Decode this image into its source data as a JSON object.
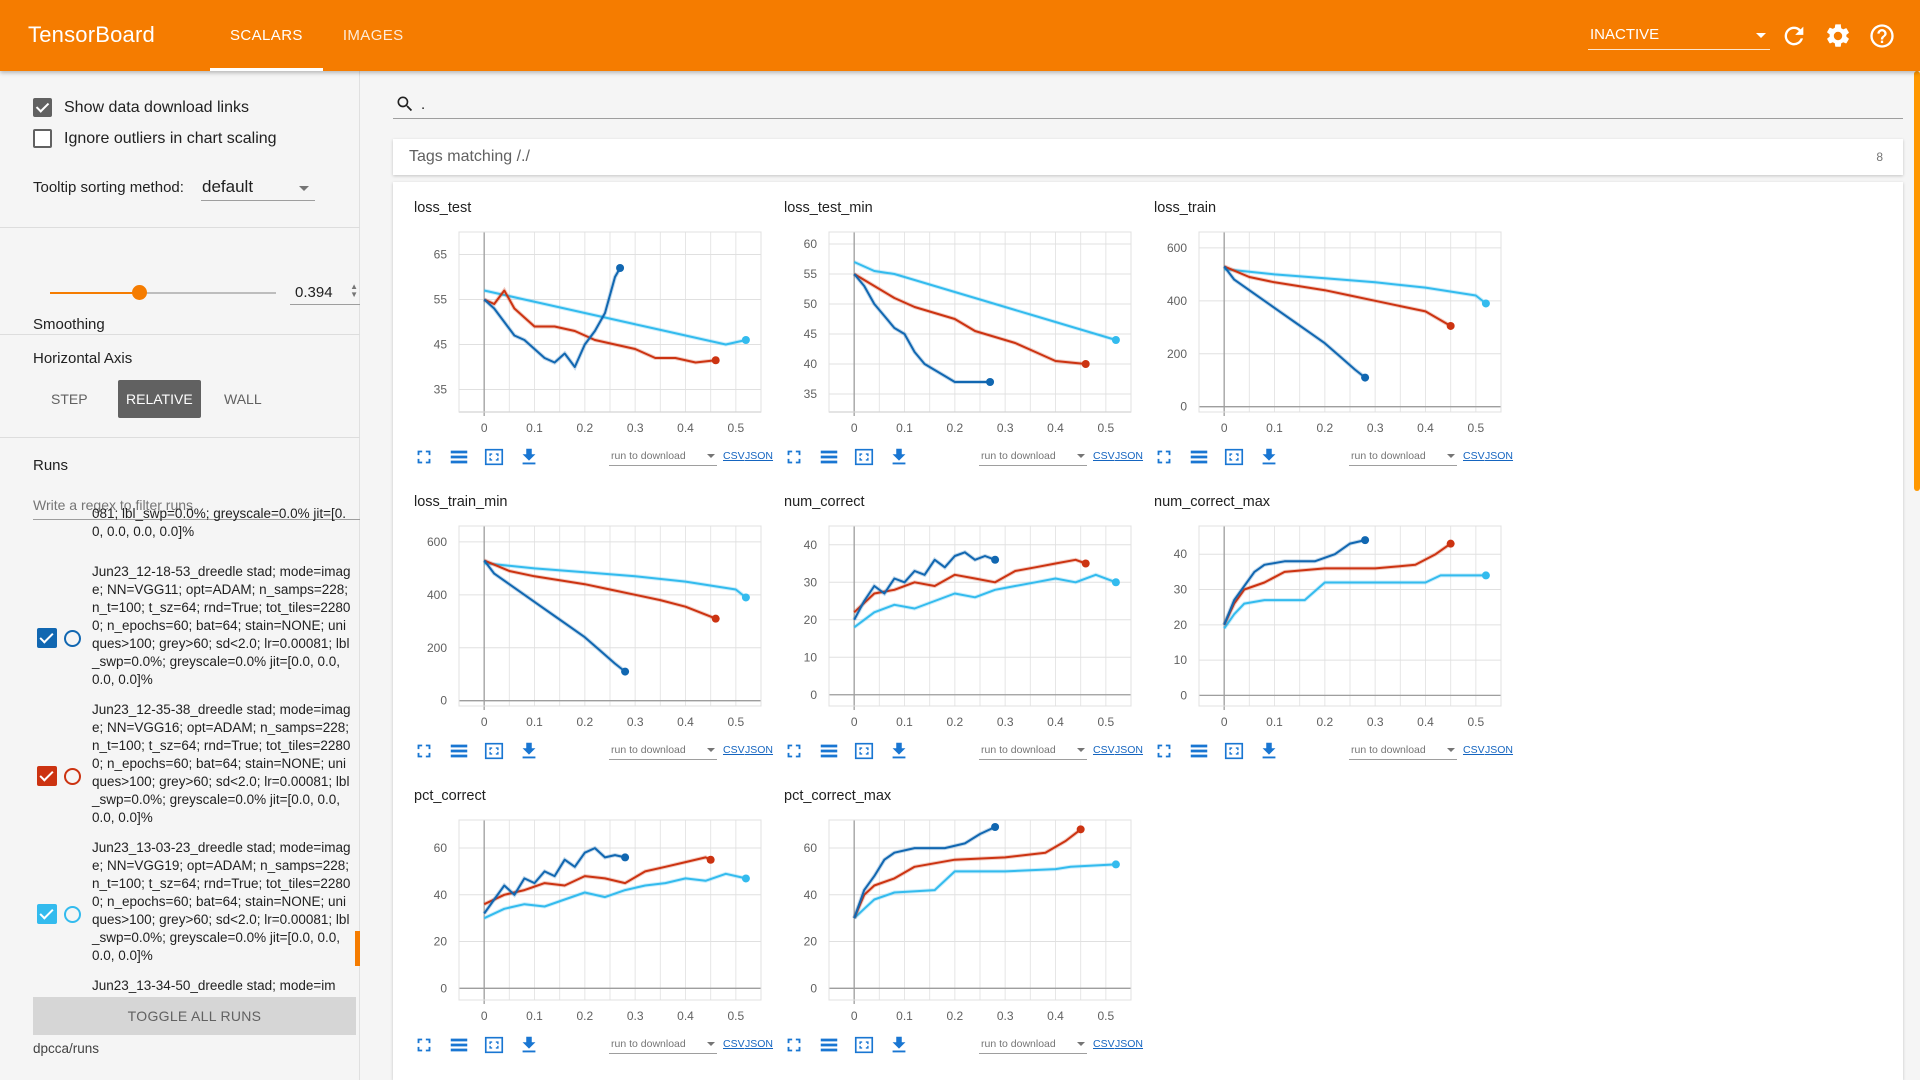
{
  "app": {
    "title": "TensorBoard"
  },
  "colors": {
    "header": "#f57c00",
    "run1": "#1167b1",
    "run2": "#cc3311",
    "run3": "#33bbee"
  },
  "header": {
    "tabs": [
      {
        "label": "SCALARS"
      },
      {
        "label": "IMAGES"
      }
    ],
    "status_select": "INACTIVE",
    "icons": [
      "refresh-icon",
      "gear-icon",
      "help-icon"
    ]
  },
  "sidebar": {
    "show_download_links": "Show data download links",
    "ignore_outliers": "Ignore outliers in chart scaling",
    "tooltip_label": "Tooltip sorting method:",
    "tooltip_value": "default",
    "smoothing_label": "Smoothing",
    "smoothing_value": "0.394",
    "horizontal_axis_label": "Horizontal Axis",
    "axis_options": [
      "STEP",
      "RELATIVE",
      "WALL"
    ],
    "runs_label": "Runs",
    "filter_placeholder": "Write a regex to filter runs",
    "runs": [
      {
        "text": "081; lbl_swp=0.0%; greyscale=0.0% jit=[0.0, 0.0, 0.0, 0.0]%",
        "partial": true
      },
      {
        "text": "Jun23_12-18-53_dreedle stad; mode=image; NN=VGG11; opt=ADAM; n_samps=228; n_t=100; t_sz=64; rnd=True; tot_tiles=22800; n_epochs=60; bat=64; stain=NONE; uniques>100; grey>60; sd<2.0; lr=0.00081; lbl_swp=0.0%; greyscale=0.0% jit=[0.0, 0.0, 0.0, 0.0]%",
        "color": "#1167b1"
      },
      {
        "text": "Jun23_12-35-38_dreedle stad; mode=image; NN=VGG16; opt=ADAM; n_samps=228; n_t=100; t_sz=64; rnd=True; tot_tiles=22800; n_epochs=60; bat=64; stain=NONE; uniques>100; grey>60; sd<2.0; lr=0.00081; lbl_swp=0.0%; greyscale=0.0% jit=[0.0, 0.0, 0.0, 0.0]%",
        "color": "#cc3311"
      },
      {
        "text": "Jun23_13-03-23_dreedle stad; mode=image; NN=VGG19; opt=ADAM; n_samps=228; n_t=100; t_sz=64; rnd=True; tot_tiles=22800; n_epochs=60; bat=64; stain=NONE; uniques>100; grey>60; sd<2.0; lr=0.00081; lbl_swp=0.0%; greyscale=0.0% jit=[0.0, 0.0, 0.0, 0.0]%",
        "color": "#33bbee"
      },
      {
        "text": "Jun23_13-34-50_dreedle stad; mode=im",
        "partial": true
      }
    ],
    "toggle_all": "TOGGLE ALL RUNS",
    "runs_path": "dpcca/runs"
  },
  "main": {
    "search_value": ".",
    "tags_matching": "Tags matching /./",
    "tags_count": "8",
    "run_to_download": "run to download",
    "csv": "CSV",
    "json": "JSON"
  },
  "chart_data": [
    {
      "type": "line",
      "title": "loss_test",
      "xticks": [
        "0",
        "0.1",
        "0.2",
        "0.3",
        "0.4",
        "0.5"
      ],
      "yticks": [
        "35",
        "45",
        "55",
        "65"
      ],
      "ylim": [
        30,
        70
      ],
      "xlim": [
        -0.05,
        0.55
      ],
      "series": [
        {
          "name": "Jun23_12-18-53",
          "x": [
            0,
            0.02,
            0.04,
            0.06,
            0.08,
            0.1,
            0.12,
            0.14,
            0.16,
            0.18,
            0.2,
            0.22,
            0.24,
            0.26,
            0.27
          ],
          "values": [
            55,
            53,
            50,
            47,
            46,
            44,
            42,
            41,
            43,
            40,
            45,
            48,
            52,
            60,
            62
          ]
        },
        {
          "name": "Jun23_12-35-38",
          "x": [
            0,
            0.02,
            0.04,
            0.06,
            0.08,
            0.1,
            0.14,
            0.18,
            0.22,
            0.26,
            0.3,
            0.34,
            0.38,
            0.42,
            0.46
          ],
          "values": [
            55,
            54,
            57,
            53,
            51,
            49,
            49,
            48,
            46,
            45,
            44,
            42,
            42,
            41,
            41.5
          ]
        },
        {
          "name": "Jun23_13-03-23",
          "x": [
            0,
            0.04,
            0.08,
            0.12,
            0.16,
            0.2,
            0.24,
            0.28,
            0.32,
            0.36,
            0.4,
            0.44,
            0.48,
            0.52
          ],
          "values": [
            57,
            56,
            55,
            54,
            53,
            52,
            51,
            50,
            49,
            48,
            47,
            46,
            45,
            46
          ]
        }
      ]
    },
    {
      "type": "line",
      "title": "loss_test_min",
      "xticks": [
        "0",
        "0.1",
        "0.2",
        "0.3",
        "0.4",
        "0.5"
      ],
      "yticks": [
        "35",
        "40",
        "45",
        "50",
        "55",
        "60"
      ],
      "ylim": [
        32,
        62
      ],
      "xlim": [
        -0.05,
        0.55
      ],
      "series": [
        {
          "name": "Jun23_12-18-53",
          "x": [
            0,
            0.02,
            0.04,
            0.06,
            0.08,
            0.1,
            0.12,
            0.14,
            0.16,
            0.18,
            0.2,
            0.24,
            0.27
          ],
          "values": [
            55,
            53,
            50,
            48,
            46,
            45,
            42,
            40,
            39,
            38,
            37,
            37,
            37
          ]
        },
        {
          "name": "Jun23_12-35-38",
          "x": [
            0,
            0.04,
            0.08,
            0.12,
            0.16,
            0.2,
            0.24,
            0.28,
            0.32,
            0.36,
            0.4,
            0.46
          ],
          "values": [
            55,
            53,
            51,
            49.5,
            48.5,
            47.5,
            45.5,
            44.5,
            43.5,
            42,
            40.5,
            40
          ]
        },
        {
          "name": "Jun23_13-03-23",
          "x": [
            0,
            0.04,
            0.08,
            0.12,
            0.16,
            0.2,
            0.24,
            0.28,
            0.32,
            0.36,
            0.4,
            0.44,
            0.48,
            0.52
          ],
          "values": [
            57,
            55.5,
            55,
            54,
            53,
            52,
            51,
            50,
            49,
            48,
            47,
            46,
            45,
            44
          ]
        }
      ]
    },
    {
      "type": "line",
      "title": "loss_train",
      "xticks": [
        "0",
        "0.1",
        "0.2",
        "0.3",
        "0.4",
        "0.5"
      ],
      "yticks": [
        "0",
        "200",
        "400",
        "600"
      ],
      "ylim": [
        -20,
        660
      ],
      "xlim": [
        -0.05,
        0.55
      ],
      "series": [
        {
          "name": "Jun23_12-18-53",
          "x": [
            0,
            0.02,
            0.05,
            0.08,
            0.11,
            0.14,
            0.17,
            0.2,
            0.23,
            0.26,
            0.28
          ],
          "values": [
            530,
            480,
            440,
            400,
            360,
            320,
            280,
            240,
            190,
            140,
            110
          ]
        },
        {
          "name": "Jun23_12-35-38",
          "x": [
            0,
            0.05,
            0.1,
            0.15,
            0.2,
            0.25,
            0.3,
            0.35,
            0.4,
            0.45
          ],
          "values": [
            530,
            490,
            470,
            455,
            440,
            420,
            400,
            380,
            360,
            305
          ]
        },
        {
          "name": "Jun23_13-03-23",
          "x": [
            0,
            0.1,
            0.2,
            0.3,
            0.4,
            0.5,
            0.52
          ],
          "values": [
            520,
            500,
            485,
            470,
            450,
            420,
            390
          ]
        }
      ]
    },
    {
      "type": "line",
      "title": "loss_train_min",
      "xticks": [
        "0",
        "0.1",
        "0.2",
        "0.3",
        "0.4",
        "0.5"
      ],
      "yticks": [
        "0",
        "200",
        "400",
        "600"
      ],
      "ylim": [
        -20,
        660
      ],
      "xlim": [
        -0.05,
        0.55
      ],
      "series": [
        {
          "name": "Jun23_12-18-53",
          "x": [
            0,
            0.02,
            0.05,
            0.08,
            0.11,
            0.14,
            0.17,
            0.2,
            0.23,
            0.26,
            0.28
          ],
          "values": [
            530,
            480,
            440,
            400,
            360,
            320,
            280,
            240,
            190,
            140,
            110
          ]
        },
        {
          "name": "Jun23_12-35-38",
          "x": [
            0,
            0.05,
            0.1,
            0.15,
            0.2,
            0.25,
            0.3,
            0.35,
            0.4,
            0.46
          ],
          "values": [
            530,
            490,
            470,
            455,
            440,
            420,
            400,
            380,
            355,
            310
          ]
        },
        {
          "name": "Jun23_13-03-23",
          "x": [
            0,
            0.1,
            0.2,
            0.3,
            0.4,
            0.5,
            0.52
          ],
          "values": [
            520,
            500,
            485,
            470,
            450,
            420,
            390
          ]
        }
      ]
    },
    {
      "type": "line",
      "title": "num_correct",
      "xticks": [
        "0",
        "0.1",
        "0.2",
        "0.3",
        "0.4",
        "0.5"
      ],
      "yticks": [
        "0",
        "10",
        "20",
        "30",
        "40"
      ],
      "ylim": [
        -3,
        45
      ],
      "xlim": [
        -0.05,
        0.55
      ],
      "series": [
        {
          "name": "Jun23_12-18-53",
          "x": [
            0,
            0.02,
            0.04,
            0.06,
            0.08,
            0.1,
            0.12,
            0.14,
            0.16,
            0.18,
            0.2,
            0.22,
            0.24,
            0.26,
            0.28
          ],
          "values": [
            20,
            25,
            29,
            27,
            31,
            30,
            33,
            32,
            36,
            34,
            37,
            38,
            36,
            37,
            36
          ]
        },
        {
          "name": "Jun23_12-35-38",
          "x": [
            0,
            0.04,
            0.08,
            0.12,
            0.16,
            0.2,
            0.24,
            0.28,
            0.32,
            0.36,
            0.4,
            0.44,
            0.46
          ],
          "values": [
            22,
            27,
            28,
            30,
            29,
            32,
            31,
            30,
            33,
            34,
            35,
            36,
            35
          ]
        },
        {
          "name": "Jun23_13-03-23",
          "x": [
            0,
            0.04,
            0.08,
            0.12,
            0.16,
            0.2,
            0.24,
            0.28,
            0.32,
            0.36,
            0.4,
            0.44,
            0.48,
            0.52
          ],
          "values": [
            18,
            22,
            24,
            23,
            25,
            27,
            26,
            28,
            29,
            30,
            31,
            30,
            32,
            30
          ]
        }
      ]
    },
    {
      "type": "line",
      "title": "num_correct_max",
      "xticks": [
        "0",
        "0.1",
        "0.2",
        "0.3",
        "0.4",
        "0.5"
      ],
      "yticks": [
        "0",
        "10",
        "20",
        "30",
        "40"
      ],
      "ylim": [
        -3,
        48
      ],
      "xlim": [
        -0.05,
        0.55
      ],
      "series": [
        {
          "name": "Jun23_12-18-53",
          "x": [
            0,
            0.02,
            0.04,
            0.06,
            0.08,
            0.12,
            0.18,
            0.22,
            0.25,
            0.28
          ],
          "values": [
            20,
            27,
            31,
            35,
            37,
            38,
            38,
            40,
            43,
            44
          ]
        },
        {
          "name": "Jun23_12-35-38",
          "x": [
            0,
            0.02,
            0.04,
            0.08,
            0.12,
            0.2,
            0.3,
            0.38,
            0.42,
            0.45
          ],
          "values": [
            20,
            26,
            30,
            32,
            35,
            36,
            36,
            37,
            40,
            43
          ]
        },
        {
          "name": "Jun23_13-03-23",
          "x": [
            0,
            0.02,
            0.04,
            0.08,
            0.16,
            0.2,
            0.3,
            0.4,
            0.43,
            0.52
          ],
          "values": [
            19,
            23,
            26,
            27,
            27,
            32,
            32,
            32,
            34,
            34
          ]
        }
      ]
    },
    {
      "type": "line",
      "title": "pct_correct",
      "xticks": [
        "0",
        "0.1",
        "0.2",
        "0.3",
        "0.4",
        "0.5"
      ],
      "yticks": [
        "0",
        "20",
        "40",
        "60"
      ],
      "ylim": [
        -5,
        72
      ],
      "xlim": [
        -0.05,
        0.55
      ],
      "series": [
        {
          "name": "Jun23_12-18-53",
          "x": [
            0,
            0.02,
            0.04,
            0.06,
            0.08,
            0.1,
            0.12,
            0.14,
            0.16,
            0.18,
            0.2,
            0.22,
            0.24,
            0.26,
            0.28
          ],
          "values": [
            32,
            38,
            44,
            40,
            47,
            45,
            50,
            48,
            55,
            52,
            58,
            60,
            56,
            57,
            56
          ]
        },
        {
          "name": "Jun23_12-35-38",
          "x": [
            0,
            0.04,
            0.08,
            0.12,
            0.16,
            0.2,
            0.24,
            0.28,
            0.32,
            0.36,
            0.4,
            0.44,
            0.45
          ],
          "values": [
            36,
            40,
            42,
            45,
            44,
            48,
            47,
            45,
            50,
            52,
            54,
            56,
            55
          ]
        },
        {
          "name": "Jun23_13-03-23",
          "x": [
            0,
            0.04,
            0.08,
            0.12,
            0.16,
            0.2,
            0.24,
            0.28,
            0.32,
            0.36,
            0.4,
            0.44,
            0.48,
            0.52
          ],
          "values": [
            30,
            34,
            36,
            35,
            38,
            41,
            39,
            42,
            44,
            45,
            47,
            46,
            49,
            47
          ]
        }
      ]
    },
    {
      "type": "line",
      "title": "pct_correct_max",
      "xticks": [
        "0",
        "0.1",
        "0.2",
        "0.3",
        "0.4",
        "0.5"
      ],
      "yticks": [
        "0",
        "20",
        "40",
        "60"
      ],
      "ylim": [
        -5,
        72
      ],
      "xlim": [
        -0.05,
        0.55
      ],
      "series": [
        {
          "name": "Jun23_12-18-53",
          "x": [
            0,
            0.02,
            0.04,
            0.06,
            0.08,
            0.12,
            0.18,
            0.22,
            0.25,
            0.28
          ],
          "values": [
            30,
            42,
            48,
            55,
            58,
            60,
            60,
            62,
            66,
            69
          ]
        },
        {
          "name": "Jun23_12-35-38",
          "x": [
            0,
            0.02,
            0.04,
            0.08,
            0.12,
            0.2,
            0.3,
            0.38,
            0.42,
            0.45
          ],
          "values": [
            30,
            40,
            44,
            47,
            52,
            55,
            56,
            58,
            63,
            68
          ]
        },
        {
          "name": "Jun23_13-03-23",
          "x": [
            0,
            0.02,
            0.04,
            0.08,
            0.16,
            0.2,
            0.3,
            0.4,
            0.43,
            0.52
          ],
          "values": [
            30,
            34,
            38,
            41,
            42,
            50,
            50,
            51,
            52,
            53
          ]
        }
      ]
    }
  ]
}
